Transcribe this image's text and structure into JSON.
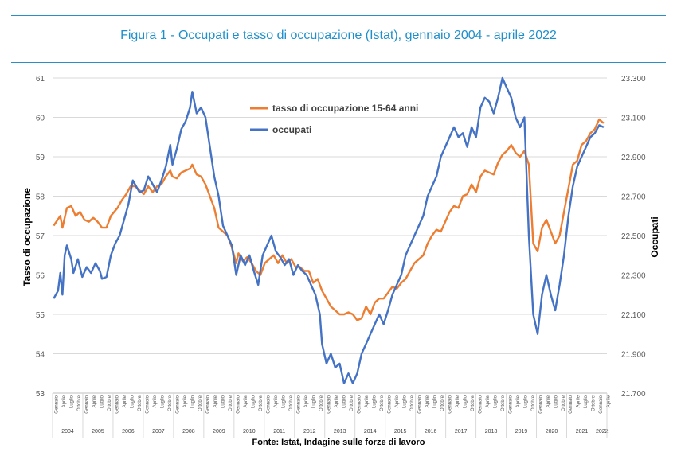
{
  "header": {
    "title": "Figura 1 - Occupati e tasso di occupazione (Istat), gennaio 2004 - aprile 2022",
    "rule_color": "#2a8fc4",
    "title_color": "#1f8fca"
  },
  "footer": {
    "source": "Fonte: Istat, Indagine sulle forze di lavoro"
  },
  "chart_data": {
    "type": "line",
    "title": "Figura 1 - Occupati e tasso di occupazione (Istat), gennaio 2004 - aprile 2022",
    "ylabel_left": "Tasso di occupazione",
    "ylabel_right": "Occupati",
    "ylim_left": [
      53,
      61
    ],
    "ylim_right": [
      21700,
      23300
    ],
    "yticks_left": [
      "53",
      "54",
      "55",
      "56",
      "57",
      "58",
      "59",
      "60",
      "61"
    ],
    "yticks_right": [
      "21.700",
      "21.900",
      "22.100",
      "22.300",
      "22.500",
      "22.700",
      "22.900",
      "23.100",
      "23.300"
    ],
    "month_labels": [
      "Gennaio",
      "Aprile",
      "Luglio",
      "Ottobre"
    ],
    "last_month_label": "Aprile",
    "years": [
      "2004",
      "2005",
      "2006",
      "2007",
      "2008",
      "2009",
      "2010",
      "2011",
      "2012",
      "2013",
      "2014",
      "2015",
      "2016",
      "2017",
      "2018",
      "2019",
      "2020",
      "2021",
      "2022"
    ],
    "legend_position": "top-center",
    "series": [
      {
        "name": "tasso di occupazione 15-64 anni",
        "axis": "left",
        "color": "#ed7d31",
        "points": [
          [
            0,
            57.25
          ],
          [
            3,
            57.5
          ],
          [
            4,
            57.2
          ],
          [
            6,
            57.7
          ],
          [
            8,
            57.75
          ],
          [
            10,
            57.5
          ],
          [
            12,
            57.6
          ],
          [
            14,
            57.4
          ],
          [
            16,
            57.35
          ],
          [
            18,
            57.45
          ],
          [
            20,
            57.35
          ],
          [
            22,
            57.2
          ],
          [
            24,
            57.2
          ],
          [
            26,
            57.5
          ],
          [
            29,
            57.7
          ],
          [
            31,
            57.9
          ],
          [
            33,
            58.05
          ],
          [
            35,
            58.25
          ],
          [
            37,
            58.25
          ],
          [
            39,
            58.15
          ],
          [
            41,
            58.05
          ],
          [
            43,
            58.25
          ],
          [
            45,
            58.1
          ],
          [
            47,
            58.25
          ],
          [
            49,
            58.3
          ],
          [
            51,
            58.5
          ],
          [
            53,
            58.65
          ],
          [
            54,
            58.5
          ],
          [
            56,
            58.45
          ],
          [
            58,
            58.6
          ],
          [
            60,
            58.65
          ],
          [
            62,
            58.7
          ],
          [
            63,
            58.8
          ],
          [
            65,
            58.55
          ],
          [
            67,
            58.5
          ],
          [
            69,
            58.3
          ],
          [
            71,
            58.0
          ],
          [
            73,
            57.7
          ],
          [
            75,
            57.2
          ],
          [
            77,
            57.1
          ],
          [
            79,
            57.0
          ],
          [
            81,
            56.7
          ],
          [
            83,
            56.3
          ],
          [
            84,
            56.55
          ],
          [
            86,
            56.35
          ],
          [
            88,
            56.45
          ],
          [
            90,
            56.3
          ],
          [
            92,
            56.1
          ],
          [
            94,
            56.0
          ],
          [
            96,
            56.3
          ],
          [
            98,
            56.4
          ],
          [
            100,
            56.5
          ],
          [
            102,
            56.3
          ],
          [
            104,
            56.5
          ],
          [
            106,
            56.3
          ],
          [
            108,
            56.4
          ],
          [
            110,
            56.2
          ],
          [
            112,
            56.2
          ],
          [
            114,
            56.1
          ],
          [
            116,
            56.1
          ],
          [
            118,
            55.8
          ],
          [
            120,
            55.9
          ],
          [
            122,
            55.6
          ],
          [
            124,
            55.4
          ],
          [
            126,
            55.2
          ],
          [
            128,
            55.1
          ],
          [
            130,
            55.0
          ],
          [
            132,
            55.0
          ],
          [
            134,
            55.05
          ],
          [
            136,
            55.0
          ],
          [
            138,
            54.85
          ],
          [
            140,
            54.9
          ],
          [
            142,
            55.2
          ],
          [
            144,
            55.0
          ],
          [
            146,
            55.3
          ],
          [
            148,
            55.4
          ],
          [
            150,
            55.4
          ],
          [
            152,
            55.55
          ],
          [
            154,
            55.7
          ],
          [
            156,
            55.65
          ],
          [
            158,
            55.8
          ],
          [
            160,
            55.9
          ],
          [
            162,
            56.1
          ],
          [
            164,
            56.3
          ],
          [
            166,
            56.4
          ],
          [
            168,
            56.5
          ],
          [
            170,
            56.8
          ],
          [
            172,
            57.0
          ],
          [
            174,
            57.15
          ],
          [
            176,
            57.1
          ],
          [
            178,
            57.35
          ],
          [
            180,
            57.6
          ],
          [
            182,
            57.75
          ],
          [
            184,
            57.7
          ],
          [
            186,
            58.0
          ],
          [
            188,
            58.05
          ],
          [
            190,
            58.3
          ],
          [
            192,
            58.1
          ],
          [
            194,
            58.5
          ],
          [
            196,
            58.65
          ],
          [
            198,
            58.6
          ],
          [
            200,
            58.55
          ],
          [
            202,
            58.85
          ],
          [
            204,
            59.05
          ],
          [
            206,
            59.15
          ],
          [
            208,
            59.3
          ],
          [
            210,
            59.1
          ],
          [
            212,
            59.0
          ],
          [
            214,
            59.15
          ],
          [
            216,
            58.8
          ],
          [
            218,
            56.8
          ],
          [
            220,
            56.6
          ],
          [
            222,
            57.2
          ],
          [
            224,
            57.4
          ],
          [
            226,
            57.1
          ],
          [
            228,
            56.8
          ],
          [
            230,
            57.0
          ],
          [
            232,
            57.6
          ],
          [
            234,
            58.2
          ],
          [
            236,
            58.8
          ],
          [
            238,
            58.9
          ],
          [
            240,
            59.3
          ],
          [
            242,
            59.4
          ],
          [
            244,
            59.6
          ],
          [
            246,
            59.7
          ],
          [
            248,
            59.95
          ],
          [
            250,
            59.85
          ]
        ]
      },
      {
        "name": "occupati",
        "axis": "right",
        "color": "#4472c4",
        "points": [
          [
            0,
            22.18
          ],
          [
            2,
            22.22
          ],
          [
            3,
            22.31
          ],
          [
            4,
            22.2
          ],
          [
            5,
            22.4
          ],
          [
            6,
            22.45
          ],
          [
            8,
            22.38
          ],
          [
            9,
            22.31
          ],
          [
            11,
            22.38
          ],
          [
            13,
            22.29
          ],
          [
            15,
            22.34
          ],
          [
            17,
            22.31
          ],
          [
            19,
            22.36
          ],
          [
            21,
            22.32
          ],
          [
            22,
            22.28
          ],
          [
            24,
            22.29
          ],
          [
            26,
            22.4
          ],
          [
            28,
            22.46
          ],
          [
            30,
            22.5
          ],
          [
            32,
            22.58
          ],
          [
            34,
            22.66
          ],
          [
            36,
            22.78
          ],
          [
            38,
            22.74
          ],
          [
            39,
            22.72
          ],
          [
            41,
            22.73
          ],
          [
            43,
            22.8
          ],
          [
            45,
            22.76
          ],
          [
            47,
            22.72
          ],
          [
            49,
            22.78
          ],
          [
            51,
            22.85
          ],
          [
            53,
            22.96
          ],
          [
            54,
            22.86
          ],
          [
            56,
            22.94
          ],
          [
            58,
            23.04
          ],
          [
            60,
            23.08
          ],
          [
            62,
            23.15
          ],
          [
            63,
            23.23
          ],
          [
            65,
            23.12
          ],
          [
            67,
            23.15
          ],
          [
            69,
            23.1
          ],
          [
            71,
            22.95
          ],
          [
            73,
            22.8
          ],
          [
            75,
            22.7
          ],
          [
            77,
            22.55
          ],
          [
            79,
            22.5
          ],
          [
            81,
            22.45
          ],
          [
            83,
            22.3
          ],
          [
            85,
            22.4
          ],
          [
            87,
            22.35
          ],
          [
            89,
            22.4
          ],
          [
            91,
            22.32
          ],
          [
            93,
            22.25
          ],
          [
            95,
            22.4
          ],
          [
            97,
            22.45
          ],
          [
            99,
            22.5
          ],
          [
            101,
            22.42
          ],
          [
            103,
            22.39
          ],
          [
            105,
            22.35
          ],
          [
            107,
            22.38
          ],
          [
            109,
            22.3
          ],
          [
            111,
            22.35
          ],
          [
            113,
            22.32
          ],
          [
            115,
            22.3
          ],
          [
            117,
            22.25
          ],
          [
            119,
            22.2
          ],
          [
            121,
            22.1
          ],
          [
            122,
            21.95
          ],
          [
            124,
            21.85
          ],
          [
            126,
            21.9
          ],
          [
            128,
            21.83
          ],
          [
            130,
            21.85
          ],
          [
            132,
            21.75
          ],
          [
            134,
            21.8
          ],
          [
            136,
            21.75
          ],
          [
            138,
            21.8
          ],
          [
            140,
            21.9
          ],
          [
            142,
            21.95
          ],
          [
            144,
            22.0
          ],
          [
            146,
            22.05
          ],
          [
            148,
            22.1
          ],
          [
            150,
            22.05
          ],
          [
            152,
            22.12
          ],
          [
            154,
            22.2
          ],
          [
            156,
            22.25
          ],
          [
            158,
            22.3
          ],
          [
            160,
            22.4
          ],
          [
            162,
            22.45
          ],
          [
            164,
            22.5
          ],
          [
            166,
            22.55
          ],
          [
            168,
            22.6
          ],
          [
            170,
            22.7
          ],
          [
            172,
            22.75
          ],
          [
            174,
            22.8
          ],
          [
            176,
            22.9
          ],
          [
            178,
            22.95
          ],
          [
            180,
            23.0
          ],
          [
            182,
            23.05
          ],
          [
            184,
            23.0
          ],
          [
            186,
            23.02
          ],
          [
            188,
            22.95
          ],
          [
            190,
            23.05
          ],
          [
            192,
            23.0
          ],
          [
            194,
            23.15
          ],
          [
            196,
            23.2
          ],
          [
            198,
            23.18
          ],
          [
            200,
            23.12
          ],
          [
            202,
            23.2
          ],
          [
            204,
            23.3
          ],
          [
            206,
            23.25
          ],
          [
            208,
            23.2
          ],
          [
            210,
            23.1
          ],
          [
            212,
            23.05
          ],
          [
            214,
            23.1
          ],
          [
            216,
            22.5
          ],
          [
            218,
            22.1
          ],
          [
            220,
            22.0
          ],
          [
            222,
            22.2
          ],
          [
            224,
            22.3
          ],
          [
            226,
            22.2
          ],
          [
            228,
            22.12
          ],
          [
            230,
            22.25
          ],
          [
            232,
            22.4
          ],
          [
            234,
            22.6
          ],
          [
            236,
            22.75
          ],
          [
            238,
            22.85
          ],
          [
            240,
            22.9
          ],
          [
            242,
            22.95
          ],
          [
            244,
            23.0
          ],
          [
            246,
            23.02
          ],
          [
            248,
            23.06
          ],
          [
            250,
            23.05
          ]
        ]
      }
    ]
  }
}
